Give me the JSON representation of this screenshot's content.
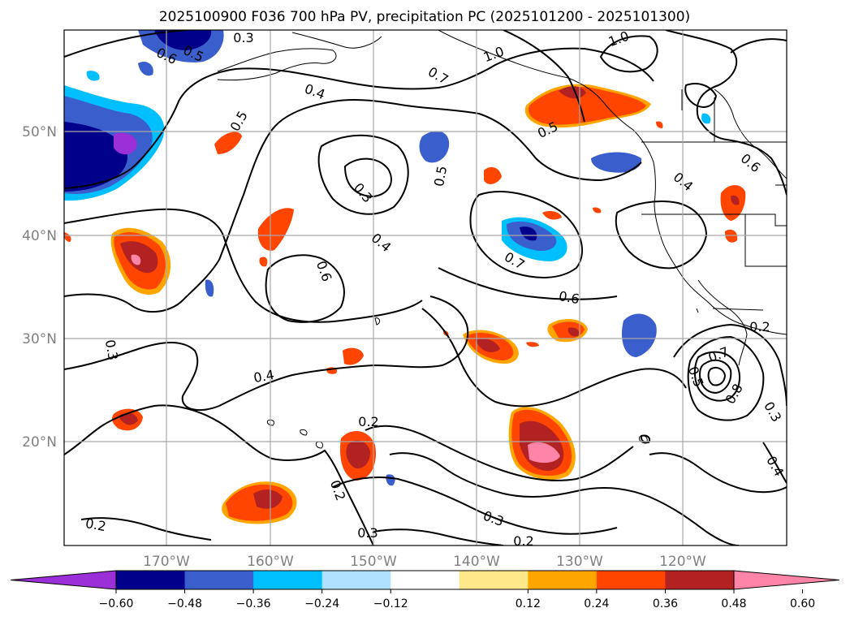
{
  "title": "2025100900 F036 700 hPa PV, precipitation PC (2025101200 - 2025101300)",
  "lat_labels": [
    "50°N",
    "40°N",
    "30°N",
    "20°N"
  ],
  "lon_labels": [
    "170°W",
    "160°W",
    "150°W",
    "140°W",
    "130°W",
    "120°W"
  ],
  "colorbar": {
    "ticks": [
      "−0.60",
      "−0.48",
      "−0.36",
      "−0.24",
      "−0.12",
      "0.12",
      "0.24",
      "0.36",
      "0.48",
      "0.60"
    ],
    "colors": [
      "#9b30d9",
      "#00008b",
      "#3a5fcd",
      "#00bfff",
      "#b0e2ff",
      "#ffffff",
      "#ffe88a",
      "#ffa500",
      "#ff4500",
      "#b22222",
      "#ff85a8"
    ],
    "extend": "both"
  },
  "contour_labels": [
    "0.3",
    "0.5",
    "0.6",
    "0.4",
    "0.5",
    "0.7",
    "1.0",
    "1.0",
    "0.5",
    "0.6",
    "0.4",
    "0.3",
    "0.5",
    "0.4",
    "0.7",
    "0.6",
    "0.6",
    "0.3",
    "0.4",
    "0.2",
    "0.2",
    "0.3",
    "0.3",
    "0.2",
    "0.2",
    "0.2",
    "0.3",
    "0.4",
    "0.7",
    "0.8",
    "0.5"
  ],
  "colors": {
    "negative_dark": "#00008b",
    "positive_dark": "#b22222",
    "positive_mid": "#ff4500",
    "positive_peak": "#ff85a8"
  }
}
